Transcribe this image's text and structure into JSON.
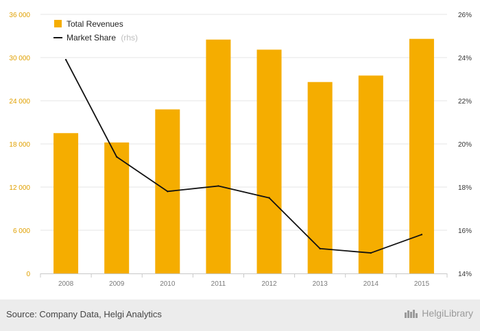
{
  "chart_data": {
    "type": "bar",
    "categories": [
      "2008",
      "2009",
      "2010",
      "2011",
      "2012",
      "2013",
      "2014",
      "2015"
    ],
    "series": [
      {
        "name": "Total Revenues",
        "kind": "bar",
        "axis": "left",
        "color": "#f5ad00",
        "values": [
          19500,
          18200,
          22800,
          32500,
          31100,
          26600,
          27500,
          32600
        ]
      },
      {
        "name": "Market Share",
        "name_suffix": "(rhs)",
        "kind": "line",
        "axis": "right",
        "color": "#111111",
        "values": [
          23.9,
          19.4,
          17.8,
          18.05,
          17.5,
          15.15,
          14.95,
          15.8
        ]
      }
    ],
    "y_left": {
      "ylim": [
        0,
        36000
      ],
      "ticks": [
        0,
        6000,
        12000,
        18000,
        24000,
        30000,
        36000
      ],
      "tick_labels": [
        "0",
        "6 000",
        "12 000",
        "18 000",
        "24 000",
        "30 000",
        "36 000"
      ]
    },
    "y_right": {
      "ylim": [
        14,
        26
      ],
      "ticks": [
        14,
        16,
        18,
        20,
        22,
        24,
        26
      ],
      "tick_labels": [
        "14%",
        "16%",
        "18%",
        "20%",
        "22%",
        "24%",
        "26%"
      ]
    },
    "title": "",
    "xlabel": "",
    "ylabel": "",
    "grid": true,
    "legend_position": "top-left"
  },
  "footer": {
    "source": "Source: Company Data, Helgi Analytics",
    "brand": "HelgiLibrary"
  }
}
